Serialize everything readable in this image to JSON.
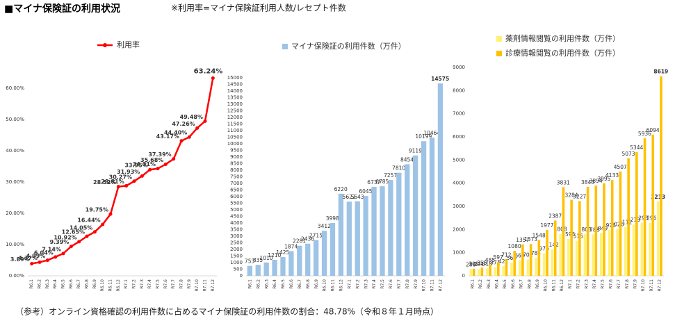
{
  "title": "■マイナ保険証の利用状況",
  "note": "※利用率=マイナ保険証利用人数/レセプト件数",
  "footnote": "（参考）オンライン資格確認の利用件数に占めるマイナ保険証の利用件数の割合：48.78%（令和８年１月時点）",
  "chart_data": [
    {
      "type": "line",
      "categories": [
        "R6.1",
        "R6.2",
        "R6.3",
        "R6.4",
        "R6.5",
        "R6.6",
        "R6.7",
        "R6.8",
        "R6.9",
        "R6.10",
        "R6.11",
        "R6.12",
        "R7.1",
        "R7.2",
        "R7.3",
        "R7.4",
        "R7.5",
        "R7.6",
        "R7.7",
        "R7.8",
        "R7.9",
        "R7.10",
        "R7.11",
        "R7.12"
      ],
      "series": [
        {
          "name": "利用率",
          "color": "#ff0000",
          "values": [
            3.89,
            4.37,
            4.99,
            6.04,
            7.14,
            9.39,
            10.92,
            12.65,
            14.05,
            16.44,
            19.75,
            28.52,
            28.81,
            30.27,
            31.93,
            33.95,
            34.31,
            35.68,
            37.39,
            43.17,
            44.4,
            47.26,
            49.48,
            63.24
          ],
          "value_labels": [
            "3.89%",
            "4.37%",
            "4.99%",
            "6.04%",
            "7.14%",
            "9.39%",
            "10.92%",
            "12.65%",
            "14.05%",
            "16.44%",
            "19.75%",
            "28.52%",
            "28.81%",
            "30.27%",
            "31.93%",
            "33.95%",
            "34.31%",
            "35.68%",
            "37.39%",
            "43.17%",
            "44.40%",
            "47.26%",
            "49.48%",
            "63.24%"
          ]
        }
      ],
      "ylim": [
        0,
        70
      ],
      "yticks": [
        {
          "value": 0,
          "label": "0.00%"
        },
        {
          "value": 10,
          "label": "10.00%"
        },
        {
          "value": 20,
          "label": "20.00%"
        },
        {
          "value": 30,
          "label": "30.00%"
        },
        {
          "value": 40,
          "label": "40.00%"
        },
        {
          "value": 50,
          "label": "50.00%"
        },
        {
          "value": 60,
          "label": "60.00%"
        }
      ],
      "grid": false
    },
    {
      "type": "bar",
      "categories": [
        "R6.1",
        "R6.2",
        "R6.3",
        "R6.4",
        "R6.5",
        "R6.6",
        "R6.7",
        "R6.8",
        "R6.9",
        "R6.10",
        "R6.11",
        "R6.12",
        "R7.1",
        "R7.2",
        "R7.3",
        "R7.4",
        "R7.5",
        "R7.6",
        "R7.7",
        "R7.8",
        "R7.9",
        "R7.10",
        "R7.11",
        "R7.12"
      ],
      "series": [
        {
          "name": "マイナ保険証の利用件数（万件）",
          "color": "#9dc3e6",
          "values": [
            753,
            835,
            1010,
            1210,
            1425,
            1874,
            2281,
            2436,
            2715,
            3412,
            3998,
            6220,
            5622,
            5643,
            6045,
            6737,
            6785,
            7257,
            7810,
            8454,
            9119,
            10199,
            10464,
            14575
          ]
        }
      ],
      "ylim": [
        0,
        15000
      ],
      "yticks": [
        0,
        500,
        1000,
        1500,
        2000,
        2500,
        3000,
        3500,
        4000,
        4500,
        5000,
        5500,
        6000,
        6500,
        7000,
        7500,
        8000,
        8500,
        9000,
        9500,
        10000,
        10500,
        11000,
        11500,
        12000,
        12500,
        13000,
        13500,
        14000,
        14500,
        15000
      ],
      "grid": false
    },
    {
      "type": "bar",
      "categories": [
        "R6.1",
        "R6.2",
        "R6.3",
        "R6.4",
        "R6.5",
        "R6.6",
        "R6.7",
        "R6.8",
        "R6.9",
        "R6.10",
        "R6.11",
        "R6.12",
        "R7.1",
        "R7.2",
        "R7.3",
        "R7.4",
        "R7.5",
        "R7.6",
        "R7.7",
        "R7.8",
        "R7.9",
        "R7.10",
        "R7.11",
        "R7.12"
      ],
      "series": [
        {
          "name": "薬剤情報閲覧の利用件数（万件）",
          "color": "#fff176",
          "values": [
            286,
            294,
            318,
            371,
            421,
            566,
            669,
            702,
            784,
            976,
            1142,
            1808,
            1595,
            1515,
            1803,
            1788,
            1849,
            1976,
            2026,
            2112,
            2213,
            2293,
            2296,
            3213
          ]
        },
        {
          "name": "診療情報閲覧の利用件数（万件）",
          "color": "#ffc000",
          "values": [
            309,
            355,
            485,
            597,
            712,
            1080,
            1357,
            1373,
            1548,
            1977,
            2387,
            3831,
            3284,
            3227,
            3843,
            3894,
            3995,
            4133,
            4507,
            5073,
            5344,
            5936,
            6094,
            8619
          ]
        }
      ],
      "ylim": [
        0,
        9000
      ],
      "yticks": [
        0,
        1000,
        2000,
        3000,
        4000,
        5000,
        6000,
        7000,
        8000,
        9000
      ],
      "grid": false
    }
  ]
}
